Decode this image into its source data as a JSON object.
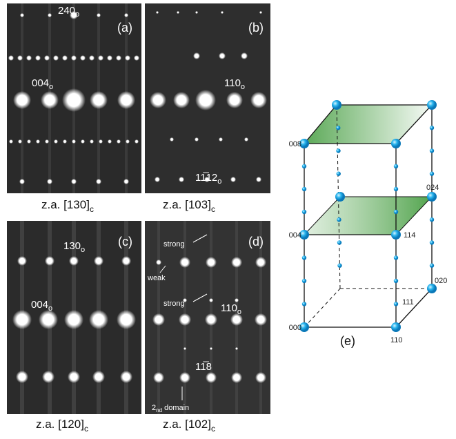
{
  "panels": [
    {
      "label": "(a)",
      "caption": {
        "main": "z.a. [130]",
        "sub": "c"
      },
      "annotations": [
        {
          "main": "240",
          "sub": "o"
        },
        {
          "main": "004",
          "sub": "o"
        }
      ]
    },
    {
      "label": "(b)",
      "caption": {
        "main": "z.a. [103]",
        "sub": "c"
      },
      "annotations": [
        {
          "main": "110",
          "sub": "o"
        },
        {
          "main": "11̅12",
          "sub": "o"
        }
      ]
    },
    {
      "label": "(c)",
      "caption": {
        "main": "z.a. [120]",
        "sub": "c"
      },
      "annotations": [
        {
          "main": "130",
          "sub": "o"
        },
        {
          "main": "004",
          "sub": "o"
        }
      ]
    },
    {
      "label": "(d)",
      "caption": {
        "main": "z.a. [102]",
        "sub": "c"
      },
      "annotations": [
        {
          "main": "strong"
        },
        {
          "main": "weak"
        },
        {
          "main": "strong"
        },
        {
          "main": "110",
          "sub": "o"
        },
        {
          "main": "11̅8"
        },
        {
          "main": "2",
          "sub": "nd",
          "rest": " domain"
        }
      ]
    }
  ],
  "lattice": {
    "label": "(e)",
    "points": [
      "008",
      "024",
      "004",
      "114",
      "020",
      "111",
      "000",
      "110"
    ]
  }
}
